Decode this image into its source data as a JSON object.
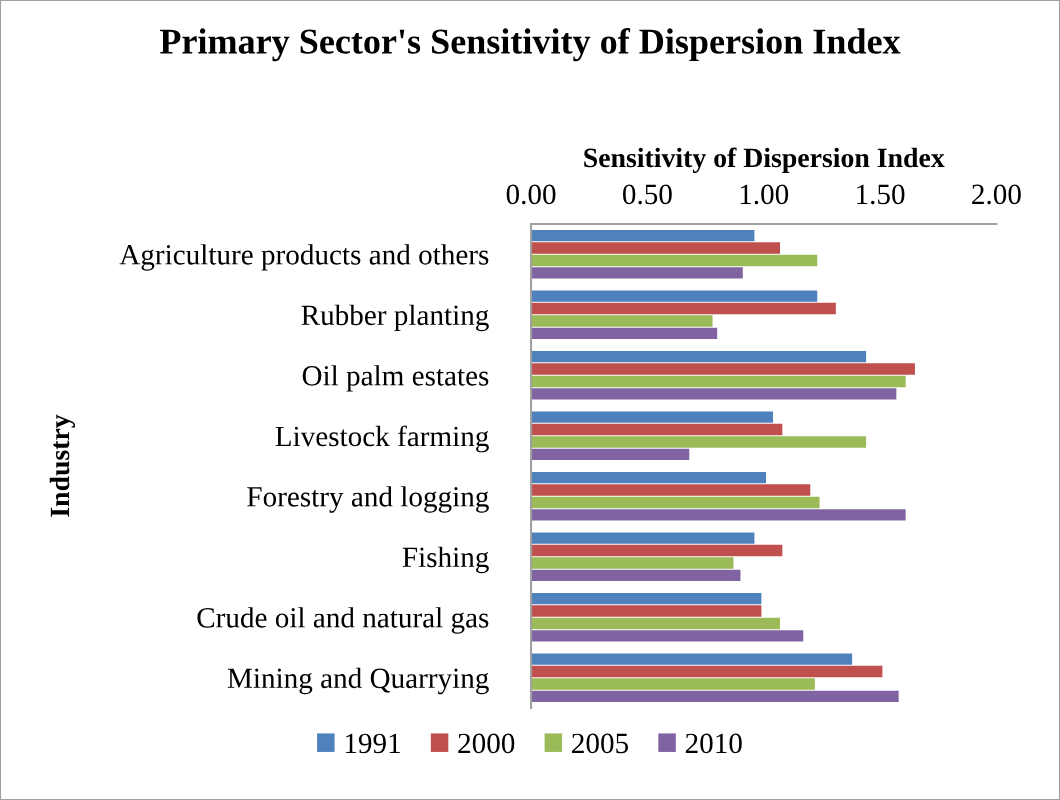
{
  "chart_data": {
    "type": "bar",
    "orientation": "horizontal",
    "title": "Primary Sector's Sensitivity of Dispersion Index",
    "xlabel": "Sensitivity of Dispersion Index",
    "ylabel": "Industry",
    "categories": [
      "Agriculture products and others",
      "Rubber planting",
      "Oil palm estates",
      "Livestock farming",
      "Forestry and logging",
      "Fishing",
      "Crude oil and natural gas",
      "Mining and Quarrying"
    ],
    "series": [
      {
        "name": "1991",
        "color": "#4f81bd",
        "values": [
          0.96,
          1.23,
          1.44,
          1.04,
          1.01,
          0.96,
          0.99,
          1.38
        ]
      },
      {
        "name": "2000",
        "color": "#c0504d",
        "values": [
          1.07,
          1.31,
          1.65,
          1.08,
          1.2,
          1.08,
          0.99,
          1.51
        ]
      },
      {
        "name": "2005",
        "color": "#9bbb59",
        "values": [
          1.23,
          0.78,
          1.61,
          1.44,
          1.24,
          0.87,
          1.07,
          1.22
        ]
      },
      {
        "name": "2010",
        "color": "#8064a2",
        "values": [
          0.91,
          0.8,
          1.57,
          0.68,
          1.61,
          0.9,
          1.17,
          1.58
        ]
      }
    ],
    "xlim": [
      0,
      2
    ],
    "xticks": [
      {
        "value": 0,
        "label": "0.00"
      },
      {
        "value": 0.5,
        "label": "0.50"
      },
      {
        "value": 1,
        "label": "1.00"
      },
      {
        "value": 1.5,
        "label": "1.50"
      },
      {
        "value": 2,
        "label": "2.00"
      }
    ],
    "legend": "bottom"
  }
}
